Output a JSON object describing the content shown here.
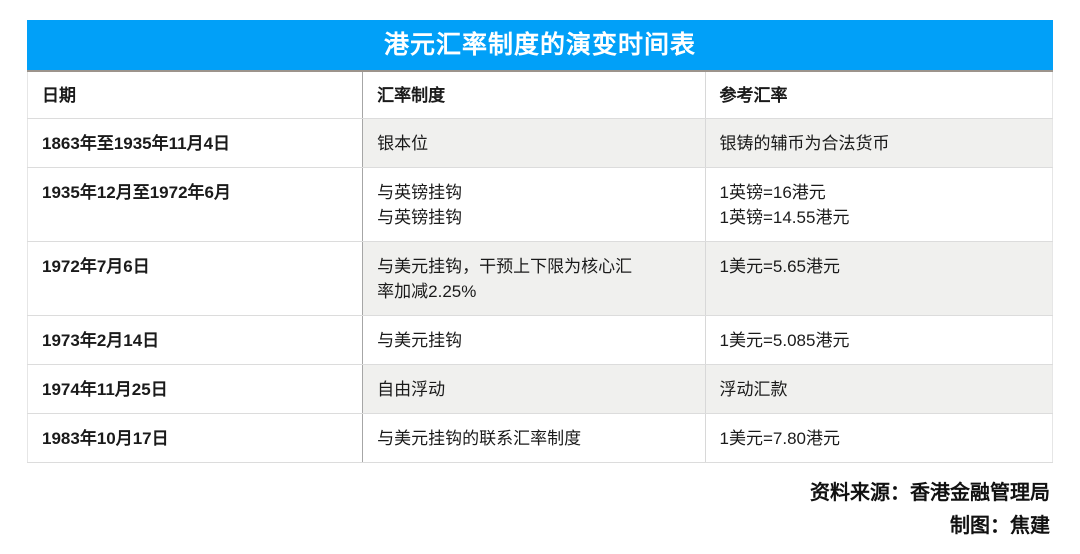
{
  "chart_data": {
    "type": "table",
    "title": "港元汇率制度的演变时间表",
    "columns": [
      "日期",
      "汇率制度",
      "参考汇率"
    ],
    "rows": [
      {
        "date": "1863年至1935年11月4日",
        "regime": [
          "银本位"
        ],
        "rate": [
          "银铸的辅币为合法货币"
        ],
        "shaded": true
      },
      {
        "date": "1935年12月至1972年6月",
        "regime": [
          "与英镑挂钩",
          "与英镑挂钩"
        ],
        "rate": [
          "1英镑=16港元",
          "1英镑=14.55港元"
        ],
        "shaded": false
      },
      {
        "date": "1972年7月6日",
        "regime": [
          "与美元挂钩，干预上下限为核心汇",
          "率加减2.25%"
        ],
        "rate": [
          "1美元=5.65港元"
        ],
        "shaded": true
      },
      {
        "date": "1973年2月14日",
        "regime": [
          "与美元挂钩"
        ],
        "rate": [
          "1美元=5.085港元"
        ],
        "shaded": false
      },
      {
        "date": "1974年11月25日",
        "regime": [
          "自由浮动"
        ],
        "rate": [
          "浮动汇款"
        ],
        "shaded": true
      },
      {
        "date": "1983年10月17日",
        "regime": [
          "与美元挂钩的联系汇率制度"
        ],
        "rate": [
          "1美元=7.80港元"
        ],
        "shaded": false
      }
    ],
    "layout": {
      "title_position": "top-center",
      "stripe_columns": [
        "汇率制度",
        "参考汇率"
      ]
    }
  },
  "footer": {
    "source": "资料来源：香港金融管理局",
    "credit": "制图：焦建"
  },
  "colors": {
    "title_bg": "#01A0F8",
    "title_text": "#FFFFFF",
    "title_bottom_border": "#9C948C",
    "stripe_bg": "#F0F0EE",
    "row_divider": "#DCDCDC",
    "col_divider_dark": "#A6A6A6",
    "col_divider_light": "#D8D8D8",
    "text": "#1A1A1A"
  }
}
